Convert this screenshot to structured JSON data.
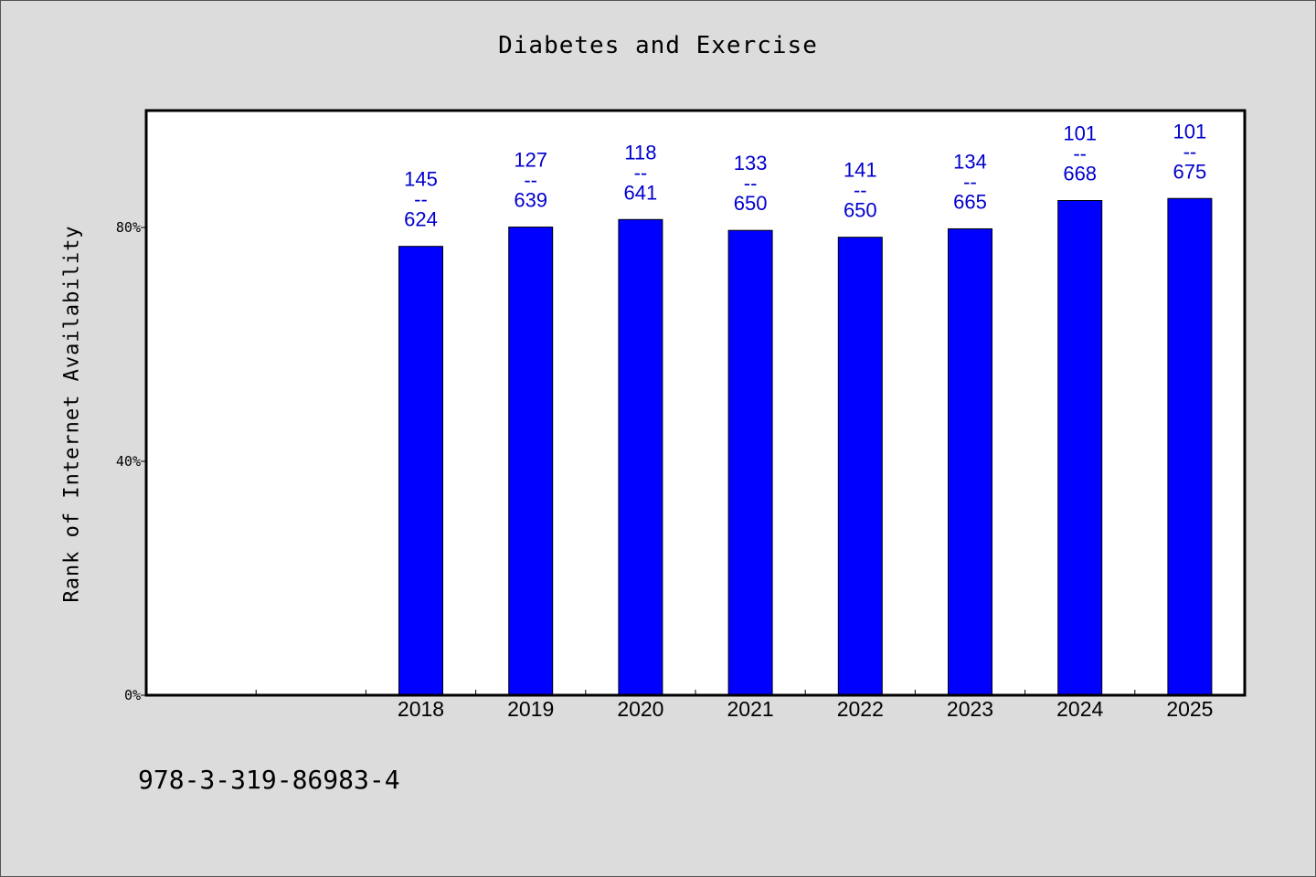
{
  "chart_data": {
    "type": "bar",
    "title": "Diabetes and Exercise",
    "ylabel": "Rank of Internet Availability",
    "xlabel": "",
    "categories": [
      "",
      "",
      "2018",
      "2019",
      "2020",
      "2021",
      "2022",
      "2023",
      "2024",
      "2025"
    ],
    "values": [
      null,
      null,
      0.7677,
      0.8007,
      0.8136,
      0.795,
      0.7833,
      0.7977,
      0.8461,
      0.8496
    ],
    "data_labels": [
      {
        "top": "145",
        "sep": "--",
        "bottom": "624"
      },
      {
        "top": "127",
        "sep": "--",
        "bottom": "639"
      },
      {
        "top": "118",
        "sep": "--",
        "bottom": "641"
      },
      {
        "top": "133",
        "sep": "--",
        "bottom": "650"
      },
      {
        "top": "141",
        "sep": "--",
        "bottom": "650"
      },
      {
        "top": "134",
        "sep": "--",
        "bottom": "665"
      },
      {
        "top": "101",
        "sep": "--",
        "bottom": "668"
      },
      {
        "top": "101",
        "sep": "--",
        "bottom": "675"
      }
    ],
    "yticks": [
      {
        "value": 0,
        "label": "0%"
      },
      {
        "value": 0.4,
        "label": "40%"
      },
      {
        "value": 0.8,
        "label": "80%"
      }
    ],
    "ylim": [
      0,
      1.0
    ],
    "grid": false,
    "legend": "none",
    "bar_color": "#0000ff",
    "label_color": "#0000cc"
  },
  "footer": {
    "isbn": "978-3-319-86983-4"
  }
}
